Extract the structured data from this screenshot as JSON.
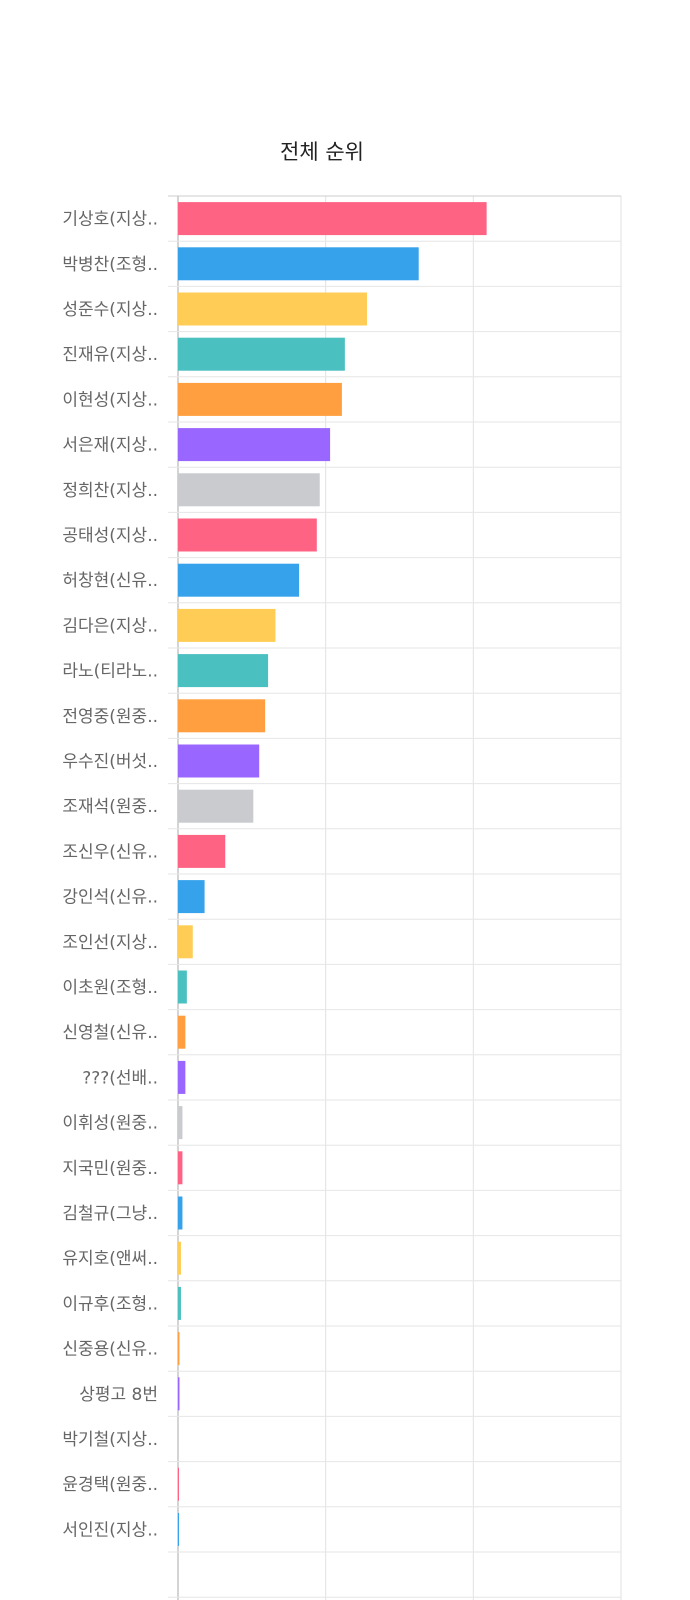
{
  "chart_data": {
    "type": "bar",
    "orientation": "horizontal",
    "title": "전체 순위",
    "xlim": [
      0,
      30
    ],
    "grid": true,
    "colors": [
      "#ff6384",
      "#36a2eb",
      "#ffcd56",
      "#4bc0c0",
      "#ff9f40",
      "#9966ff",
      "#c9cbcf"
    ],
    "categories": [
      "기상호(지상..",
      "박병찬(조형..",
      "성준수(지상..",
      "진재유(지상..",
      "이현성(지상..",
      "서은재(지상..",
      "정희찬(지상..",
      "공태성(지상..",
      "허창현(신유..",
      "김다은(지상..",
      "라노(티라노..",
      "전영중(원중..",
      "우수진(버섯..",
      "조재석(원중..",
      "조신우(신유..",
      "강인석(신유..",
      "조인선(지상..",
      "이초원(조형..",
      "신영철(신유..",
      "???(선배..",
      "이휘성(원중..",
      "지국민(원중..",
      "김철규(그냥..",
      "유지호(앤써..",
      "이규후(조형..",
      "신중용(신유..",
      "상평고 8번",
      "박기철(지상..",
      "윤경택(원중..",
      "서인진(지상.."
    ],
    "values": [
      20.9,
      16.3,
      12.8,
      11.3,
      11.1,
      10.3,
      9.6,
      9.4,
      8.2,
      6.6,
      6.1,
      5.9,
      5.5,
      5.1,
      3.2,
      1.8,
      1.0,
      0.6,
      0.5,
      0.5,
      0.3,
      0.3,
      0.3,
      0.2,
      0.2,
      0.1,
      0.1,
      0,
      0.05,
      0.05
    ]
  }
}
